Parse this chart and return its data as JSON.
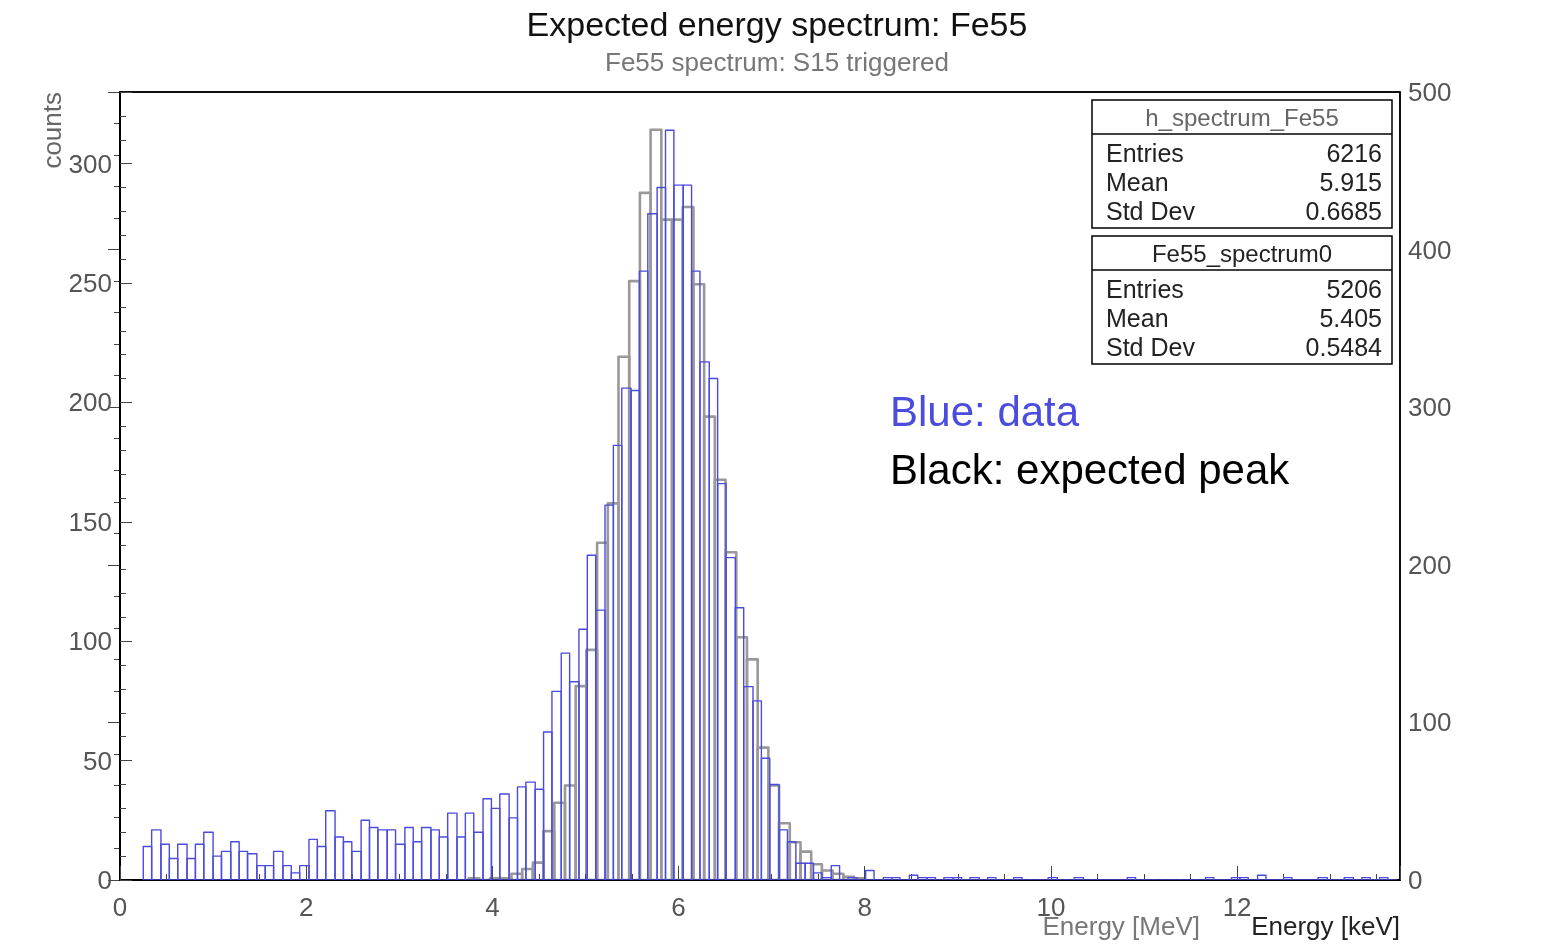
{
  "chart_data": [
    {
      "type": "histogram",
      "title": "Expected energy spectrum: Fe55",
      "xlabel": "Energy [keV]",
      "ylabel": "counts",
      "xlim": [
        0,
        13.75
      ],
      "xticks": [
        0,
        2,
        4,
        6,
        8,
        10,
        12
      ],
      "ylim": [
        0,
        330
      ],
      "yticks": [
        0,
        50,
        100,
        150,
        200,
        250,
        300
      ],
      "bins": [
        0.25,
        0.34,
        0.44,
        0.53,
        0.62,
        0.72,
        0.81,
        0.9,
        1.0,
        1.09,
        1.19,
        1.28,
        1.37,
        1.47,
        1.56,
        1.65,
        1.75,
        1.84,
        1.93,
        2.03,
        2.12,
        2.21,
        2.31,
        2.4,
        2.49,
        2.59,
        2.68,
        2.77,
        2.87,
        2.96,
        3.06,
        3.15,
        3.24,
        3.34,
        3.43,
        3.52,
        3.62,
        3.71,
        3.8,
        3.9,
        3.99,
        4.08,
        4.18,
        4.27,
        4.36,
        4.46,
        4.55,
        4.64,
        4.74,
        4.83,
        4.93,
        5.02,
        5.11,
        5.21,
        5.3,
        5.39,
        5.49,
        5.58,
        5.67,
        5.77,
        5.86,
        5.95,
        6.05,
        6.14,
        6.23,
        6.33,
        6.42,
        6.51,
        6.61,
        6.7,
        6.8,
        6.89,
        6.98,
        7.08,
        7.17,
        7.26,
        7.36,
        7.45,
        7.54,
        7.64,
        7.73,
        7.82,
        7.92,
        8.01,
        8.1,
        8.2,
        8.29,
        8.38,
        8.48,
        8.57,
        8.67,
        8.76,
        8.85,
        8.95,
        9.04,
        9.13,
        9.23,
        9.32,
        9.41,
        9.51,
        9.6,
        9.69,
        9.79,
        9.88,
        9.97,
        10.07,
        10.16,
        10.25,
        10.35,
        10.44,
        10.54,
        10.63,
        10.72,
        10.82,
        10.91,
        11.0,
        11.1,
        11.19,
        11.28,
        11.38,
        11.47,
        11.56,
        11.66,
        11.75,
        11.84,
        11.94,
        12.03,
        12.12,
        12.22,
        12.31,
        12.41,
        12.5,
        12.59,
        12.69,
        12.78,
        12.87,
        12.97,
        13.06,
        13.15,
        13.25,
        13.34,
        13.43,
        13.53,
        13.62,
        13.71
      ],
      "series": [
        {
          "color": "#4b4bdc",
          "values": [
            14,
            21,
            15,
            9,
            15,
            9,
            15,
            20,
            10,
            12,
            16,
            12,
            11,
            6,
            6,
            12,
            6,
            3,
            6,
            17,
            14,
            29,
            18,
            16,
            12,
            25,
            22,
            21,
            21,
            15,
            22,
            16,
            22,
            21,
            18,
            28,
            18,
            28,
            20,
            34,
            30,
            36,
            26,
            39,
            41,
            38,
            62,
            79,
            95,
            83,
            105,
            136,
            113,
            157,
            182,
            206,
            205,
            255,
            279,
            290,
            314,
            291,
            291,
            255,
            217,
            210,
            166,
            135,
            114,
            81,
            75,
            51,
            40,
            21,
            16,
            7,
            7,
            3,
            1,
            6,
            0,
            1,
            0,
            4,
            0,
            1,
            1,
            0,
            2,
            1,
            1,
            0,
            1,
            1,
            0,
            1,
            0,
            1,
            0,
            0,
            1,
            0,
            0,
            0,
            1,
            0,
            0,
            1,
            0,
            0,
            0,
            0,
            0,
            1,
            0,
            0,
            0,
            0,
            0,
            0,
            0,
            0,
            1,
            0,
            0,
            1,
            1,
            0,
            2,
            0,
            0,
            1,
            0,
            0,
            0,
            1,
            0,
            0,
            1,
            0,
            1,
            0,
            1,
            0
          ]
        }
      ],
      "annotations": [
        "Blue: data",
        "Black: expected peak",
        "h_spectrum_Fe55",
        "Entries",
        "6216",
        "Mean",
        "5.915",
        "Std Dev",
        "0.6685"
      ]
    },
    {
      "type": "histogram",
      "title": "Fe55 spectrum: S15 triggered",
      "xlabel": "Energy [MeV]",
      "xlim": [
        0,
        13.75
      ],
      "xticks": [
        0,
        2,
        4,
        6,
        8,
        10,
        12
      ],
      "ylim": [
        0,
        500
      ],
      "yticks": [
        0,
        100,
        200,
        300,
        400,
        500
      ],
      "tick_labels": "y",
      "bins": [
        3.745,
        3.86,
        3.975,
        4.09,
        4.205,
        4.32,
        4.435,
        4.55,
        4.665,
        4.78,
        4.895,
        5.01,
        5.125,
        5.24,
        5.355,
        5.47,
        5.585,
        5.7,
        5.815,
        5.93,
        6.045,
        6.16,
        6.275,
        6.39,
        6.505,
        6.62,
        6.735,
        6.85,
        6.965,
        7.08,
        7.195,
        7.31,
        7.425,
        7.54,
        7.655,
        7.77,
        7.885,
        8.0
      ],
      "series": [
        {
          "color": "#999999",
          "values": [
            1,
            0,
            1,
            1,
            4,
            7,
            11,
            31,
            49,
            60,
            123,
            146,
            214,
            239,
            332,
            380,
            436,
            476,
            419,
            419,
            427,
            378,
            294,
            254,
            208,
            154,
            140,
            84,
            60,
            36,
            24,
            18,
            10,
            6,
            4,
            2,
            1
          ]
        }
      ],
      "annotations": [
        "Fe55_spectrum0",
        "Entries",
        "5206",
        "Mean",
        "5.405",
        "Std Dev",
        "0.5484"
      ]
    }
  ]
}
